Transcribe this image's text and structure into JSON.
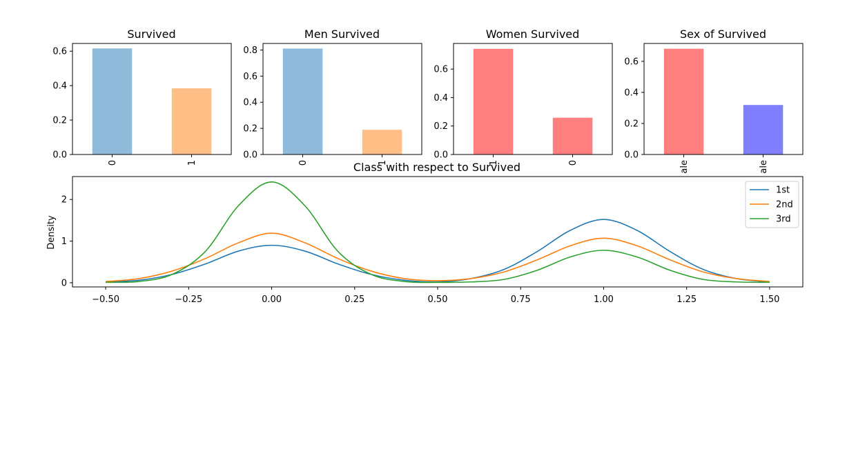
{
  "chart_data": [
    {
      "type": "bar",
      "title": "Survived",
      "categories": [
        "0",
        "1"
      ],
      "values": [
        0.616,
        0.384
      ],
      "bar_colors": [
        "#8fbad9",
        "#ffbe86"
      ],
      "ylim": [
        0,
        0.645
      ],
      "yticks": [
        "0.0",
        "0.2",
        "0.4",
        "0.6"
      ],
      "ytick_values": [
        0,
        0.2,
        0.4,
        0.6
      ]
    },
    {
      "type": "bar",
      "title": "Men Survived",
      "categories": [
        "0",
        "1"
      ],
      "values": [
        0.811,
        0.189
      ],
      "bar_colors": [
        "#8fbad9",
        "#ffbe86"
      ],
      "ylim": [
        0,
        0.85
      ],
      "yticks": [
        "0.0",
        "0.2",
        "0.4",
        "0.6",
        "0.8"
      ],
      "ytick_values": [
        0,
        0.2,
        0.4,
        0.6,
        0.8
      ]
    },
    {
      "type": "bar",
      "title": "Women Survived",
      "categories": [
        "1",
        "0"
      ],
      "values": [
        0.742,
        0.258
      ],
      "bar_colors": [
        "#ff7f7f",
        "#ff7f7f"
      ],
      "ylim": [
        0,
        0.78
      ],
      "yticks": [
        "0.0",
        "0.2",
        "0.4",
        "0.6"
      ],
      "ytick_values": [
        0,
        0.2,
        0.4,
        0.6
      ]
    },
    {
      "type": "bar",
      "title": "Sex of Survived",
      "categories": [
        "ale",
        "ale"
      ],
      "values": [
        0.681,
        0.319
      ],
      "bar_colors": [
        "#ff7f7f",
        "#7f7fff"
      ],
      "ylim": [
        0,
        0.715
      ],
      "yticks": [
        "0.0",
        "0.2",
        "0.4",
        "0.6"
      ],
      "ytick_values": [
        0,
        0.2,
        0.4,
        0.6
      ]
    },
    {
      "type": "line",
      "title": "Class with respect to Survived",
      "xlabel": "",
      "ylabel": "Density",
      "xlim": [
        -0.6,
        1.6
      ],
      "ylim": [
        -0.1,
        2.55
      ],
      "xticks": [
        "−0.50",
        "−0.25",
        "0.00",
        "0.25",
        "0.50",
        "0.75",
        "1.00",
        "1.25",
        "1.50"
      ],
      "xtick_values": [
        -0.5,
        -0.25,
        0,
        0.25,
        0.5,
        0.75,
        1.0,
        1.25,
        1.5
      ],
      "yticks": [
        "0",
        "1",
        "2"
      ],
      "ytick_values": [
        0,
        1,
        2
      ],
      "legend_position": "top-right",
      "series": [
        {
          "name": "1st",
          "color": "#1f77b4",
          "x": [
            -0.5,
            -0.4,
            -0.3,
            -0.2,
            -0.1,
            0.0,
            0.1,
            0.2,
            0.3,
            0.4,
            0.5,
            0.6,
            0.7,
            0.8,
            0.9,
            1.0,
            1.1,
            1.2,
            1.3,
            1.4,
            1.5
          ],
          "y": [
            0.02,
            0.06,
            0.2,
            0.45,
            0.76,
            0.9,
            0.76,
            0.45,
            0.2,
            0.06,
            0.02,
            0.1,
            0.32,
            0.75,
            1.26,
            1.52,
            1.26,
            0.75,
            0.32,
            0.1,
            0.02
          ]
        },
        {
          "name": "2nd",
          "color": "#ff7f0e",
          "x": [
            -0.5,
            -0.4,
            -0.3,
            -0.2,
            -0.1,
            0.0,
            0.1,
            0.2,
            0.3,
            0.4,
            0.5,
            0.6,
            0.7,
            0.8,
            0.9,
            1.0,
            1.1,
            1.2,
            1.3,
            1.4,
            1.5
          ],
          "y": [
            0.03,
            0.1,
            0.28,
            0.58,
            0.96,
            1.19,
            0.96,
            0.58,
            0.28,
            0.1,
            0.05,
            0.1,
            0.26,
            0.55,
            0.89,
            1.07,
            0.89,
            0.55,
            0.26,
            0.1,
            0.03
          ]
        },
        {
          "name": "3rd",
          "color": "#2ca02c",
          "x": [
            -0.5,
            -0.4,
            -0.3,
            -0.2,
            -0.1,
            0.0,
            0.1,
            0.2,
            0.3,
            0.4,
            0.5,
            0.6,
            0.7,
            0.8,
            0.9,
            1.0,
            1.1,
            1.2,
            1.3,
            1.4,
            1.5
          ],
          "y": [
            0.01,
            0.03,
            0.2,
            0.75,
            1.85,
            2.42,
            1.85,
            0.75,
            0.2,
            0.03,
            0.01,
            0.02,
            0.08,
            0.3,
            0.62,
            0.78,
            0.62,
            0.3,
            0.08,
            0.02,
            0.01
          ]
        }
      ]
    }
  ]
}
